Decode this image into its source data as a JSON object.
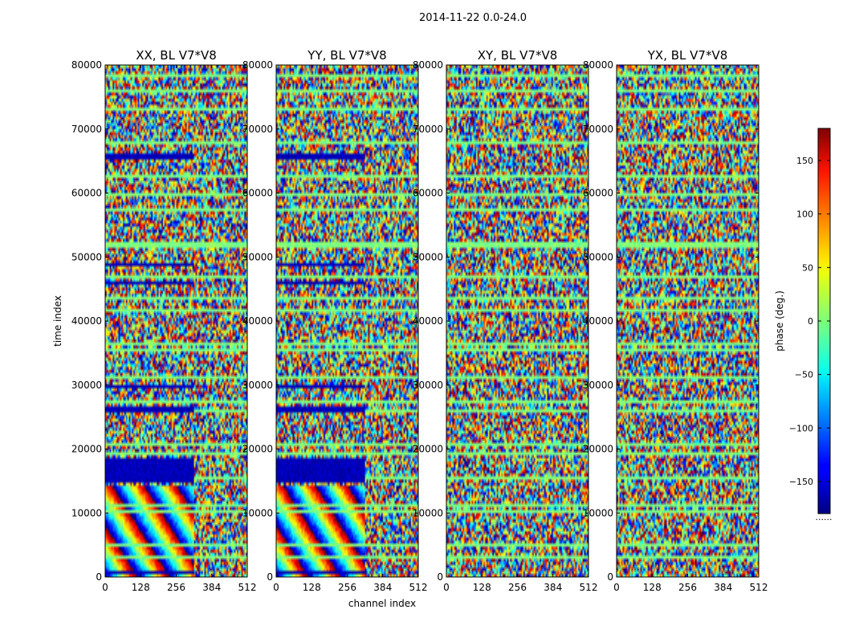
{
  "figure": {
    "suptitle": "2014-11-22 0.0-24.0",
    "xlabel": "channel index",
    "ylabel": "time index",
    "colorbar_label": "phase (deg.)",
    "colorbar_ticks": [
      150,
      100,
      50,
      0,
      -50,
      -100,
      -150
    ],
    "colorbar_tick_labels": [
      "150",
      "100",
      "50",
      "0",
      "−50",
      "−100",
      "−150"
    ],
    "colormap": "jet",
    "colorbar_dots": "......"
  },
  "chart_data": [
    {
      "type": "heatmap",
      "title": "XX, BL V7*V8",
      "x": [
        0,
        512
      ],
      "y": [
        0,
        80000
      ],
      "xticks": [
        0,
        128,
        256,
        384,
        512
      ],
      "xtick_labels": [
        "0",
        "128",
        "256",
        "384",
        "512"
      ],
      "yticks": [
        0,
        10000,
        20000,
        30000,
        40000,
        50000,
        60000,
        70000,
        80000
      ],
      "ytick_labels": [
        "0",
        "10000",
        "20000",
        "30000",
        "40000",
        "50000",
        "60000",
        "70000",
        "80000"
      ],
      "xlim": [
        0,
        512
      ],
      "ylim": [
        0,
        80000
      ],
      "value_range": [
        -180,
        180
      ],
      "value_label": "phase (deg.)",
      "uniform_bands": [
        [
          65400,
          66100
        ],
        [
          48500,
          49100
        ],
        [
          45800,
          46400
        ],
        [
          29600,
          30200
        ],
        [
          25500,
          26600
        ],
        [
          15000,
          18500
        ],
        [
          300,
          900
        ]
      ],
      "band_phase": -160,
      "fringe_region_channel_end": 320
    },
    {
      "type": "heatmap",
      "title": "YY, BL V7*V8",
      "x": [
        0,
        512
      ],
      "y": [
        0,
        80000
      ],
      "xticks": [
        0,
        128,
        256,
        384,
        512
      ],
      "xtick_labels": [
        "0",
        "128",
        "256",
        "384",
        "512"
      ],
      "yticks": [
        0,
        10000,
        20000,
        30000,
        40000,
        50000,
        60000,
        70000,
        80000
      ],
      "ytick_labels": [
        "0",
        "10000",
        "20000",
        "30000",
        "40000",
        "50000",
        "60000",
        "70000",
        "80000"
      ],
      "xlim": [
        0,
        512
      ],
      "ylim": [
        0,
        80000
      ],
      "value_range": [
        -180,
        180
      ],
      "value_label": "phase (deg.)",
      "uniform_bands": [
        [
          65400,
          66100
        ],
        [
          48500,
          49100
        ],
        [
          45800,
          46400
        ],
        [
          29600,
          30200
        ],
        [
          25500,
          26600
        ],
        [
          15000,
          18500
        ],
        [
          300,
          900
        ]
      ],
      "band_phase": -160,
      "fringe_region_channel_end": 320
    },
    {
      "type": "heatmap",
      "title": "XY, BL V7*V8",
      "x": [
        0,
        512
      ],
      "y": [
        0,
        80000
      ],
      "xticks": [
        0,
        128,
        256,
        384,
        512
      ],
      "xtick_labels": [
        "0",
        "128",
        "256",
        "384",
        "512"
      ],
      "yticks": [
        0,
        10000,
        20000,
        30000,
        40000,
        50000,
        60000,
        70000,
        80000
      ],
      "ytick_labels": [
        "0",
        "10000",
        "20000",
        "30000",
        "40000",
        "50000",
        "60000",
        "70000",
        "80000"
      ],
      "xlim": [
        0,
        512
      ],
      "ylim": [
        0,
        80000
      ],
      "value_range": [
        -180,
        180
      ],
      "value_label": "phase (deg.)",
      "uniform_bands": [],
      "band_phase": 0,
      "fringe_region_channel_end": 0
    },
    {
      "type": "heatmap",
      "title": "YX, BL V7*V8",
      "x": [
        0,
        512
      ],
      "y": [
        0,
        80000
      ],
      "xticks": [
        0,
        128,
        256,
        384,
        512
      ],
      "xtick_labels": [
        "0",
        "128",
        "256",
        "384",
        "512"
      ],
      "yticks": [
        0,
        10000,
        20000,
        30000,
        40000,
        50000,
        60000,
        70000,
        80000
      ],
      "ytick_labels": [
        "0",
        "10000",
        "20000",
        "30000",
        "40000",
        "50000",
        "60000",
        "70000",
        "80000"
      ],
      "xlim": [
        0,
        512
      ],
      "ylim": [
        0,
        80000
      ],
      "value_range": [
        -180,
        180
      ],
      "value_label": "phase (deg.)",
      "uniform_bands": [],
      "band_phase": 0,
      "fringe_region_channel_end": 0
    }
  ]
}
